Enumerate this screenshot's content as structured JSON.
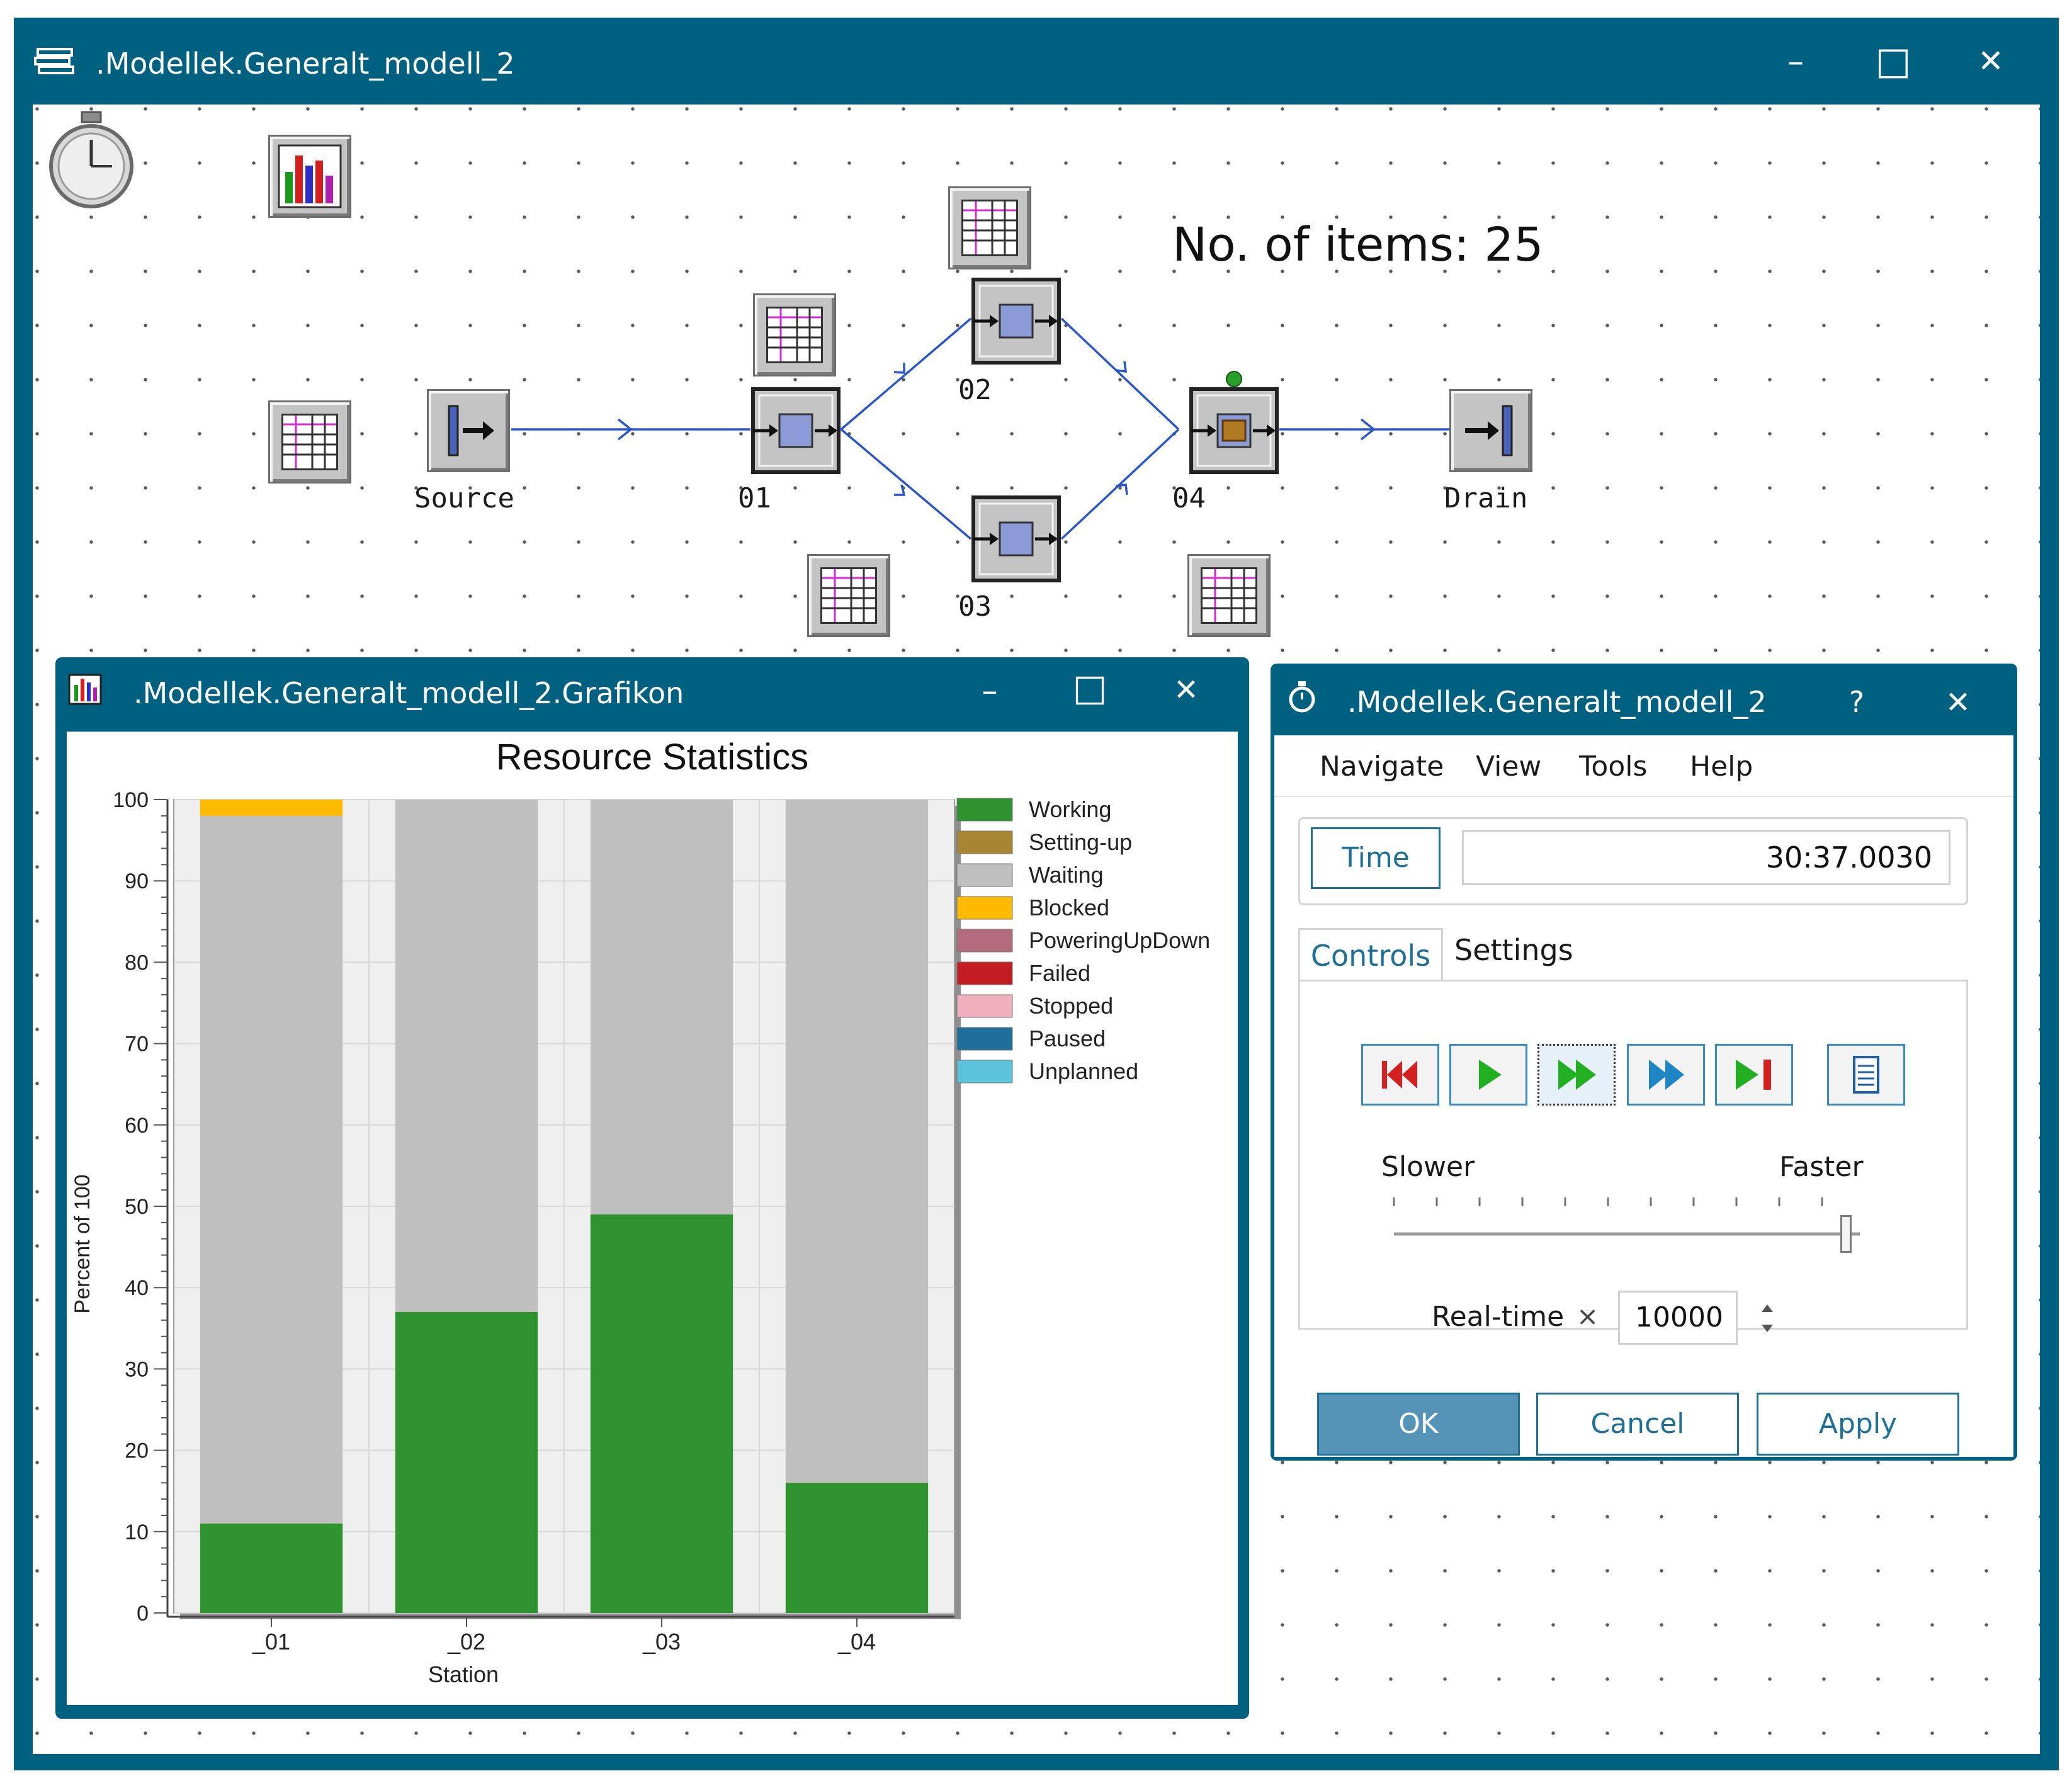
{
  "main_window": {
    "title": ".Modellek.Generalt_modell_2",
    "controls": {
      "minimize": "–",
      "maximize": "□",
      "close": "✕"
    }
  },
  "model": {
    "items_text": "No. of items: 25",
    "objects": {
      "source": "Source",
      "s01": "01",
      "s02": "02",
      "s03": "03",
      "s04": "04",
      "drain": "Drain"
    }
  },
  "chart_window": {
    "title": ".Modellek.Generalt_modell_2.Grafikon",
    "controls": {
      "minimize": "–",
      "maximize": "□",
      "close": "✕"
    }
  },
  "chart_data": {
    "type": "bar",
    "stacked": true,
    "title": "Resource Statistics",
    "xlabel": "Station",
    "ylabel": "Percent of 100",
    "categories": [
      "_01",
      "_02",
      "_03",
      "_04"
    ],
    "ylim": [
      0,
      100
    ],
    "yticks": [
      0,
      10,
      20,
      30,
      40,
      50,
      60,
      70,
      80,
      90,
      100
    ],
    "series": [
      {
        "name": "Working",
        "color": "#2e922e",
        "values": [
          11,
          37,
          49,
          16
        ]
      },
      {
        "name": "Setting-up",
        "color": "#a88532",
        "values": [
          0,
          0,
          0,
          0
        ]
      },
      {
        "name": "Waiting",
        "color": "#bfbfbf",
        "values": [
          87,
          63,
          51,
          84
        ]
      },
      {
        "name": "Blocked",
        "color": "#ffbb00",
        "values": [
          2,
          0,
          0,
          0
        ]
      },
      {
        "name": "PoweringUpDown",
        "color": "#b26c7e",
        "values": [
          0,
          0,
          0,
          0
        ]
      },
      {
        "name": "Failed",
        "color": "#c31d23",
        "values": [
          0,
          0,
          0,
          0
        ]
      },
      {
        "name": "Stopped",
        "color": "#f0afbd",
        "values": [
          0,
          0,
          0,
          0
        ]
      },
      {
        "name": "Paused",
        "color": "#1e6f9a",
        "values": [
          0,
          0,
          0,
          0
        ]
      },
      {
        "name": "Unplanned",
        "color": "#5bc3dc",
        "values": [
          0,
          0,
          0,
          0
        ]
      }
    ],
    "legend": "right",
    "grid": true
  },
  "event_controller": {
    "title": ".Modellek.Generalt_modell_2",
    "controls": {
      "help": "?",
      "close": "✕"
    },
    "menu": [
      "Navigate",
      "View",
      "Tools",
      "Help"
    ],
    "time_button": "Time",
    "time_value": "30:37.0030",
    "tabs": [
      "Controls",
      "Settings"
    ],
    "active_tab": "Controls",
    "slower": "Slower",
    "faster": "Faster",
    "speed_fraction": 0.97,
    "realtime_label": "Real-time",
    "times_sign": "×",
    "realtime_value": "10000",
    "ok": "OK",
    "cancel": "Cancel",
    "apply": "Apply"
  }
}
